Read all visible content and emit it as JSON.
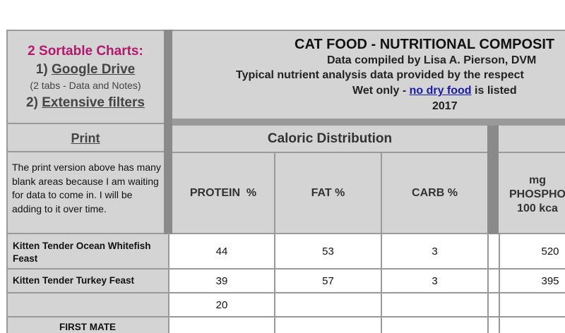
{
  "left_panel": {
    "charts_title": "2 Sortable Charts:",
    "item1_num": "1)",
    "item1_label": "Google Drive",
    "item1_note": "(2 tabs - Data and Notes)",
    "item2_num": "2)",
    "item2_label": "Extensive filters",
    "print_label": "Print",
    "print_note": "The print version above has many blank areas because I am waiting for data to come in.  I will be adding to it over time."
  },
  "header": {
    "title": "CAT FOOD - NUTRITIONAL COMPOSIT",
    "line2": "Data compiled by Lisa A. Pierson, DVM",
    "line3": "Typical nutrient analysis data provided by the respect",
    "line4_pre": "Wet only - ",
    "line4_link": "no dry food",
    "line4_post": " is listed",
    "year": "2017"
  },
  "table": {
    "group_header": "Caloric Distribution",
    "columns": {
      "protein": "PROTEIN  %",
      "fat": "FAT %",
      "carb": "CARB %",
      "phos_line1": "mg",
      "phos_line2": "PHOSPHO",
      "phos_line3": "100 kca"
    },
    "rows": [
      {
        "name": "Kitten Tender Ocean Whitefish Feast",
        "protein": "44",
        "fat": "53",
        "carb": "3",
        "phos": "520"
      },
      {
        "name": "Kitten Tender Turkey Feast",
        "protein": "39",
        "fat": "57",
        "carb": "3",
        "phos": "395"
      },
      {
        "name": "",
        "protein": "20",
        "fat": "",
        "carb": "",
        "phos": ""
      },
      {
        "name": "FIRST MATE",
        "protein": "",
        "fat": "",
        "carb": "",
        "phos": ""
      }
    ]
  },
  "colors": {
    "accent_magenta": "#b3186d",
    "link_blue": "#1a1aa6",
    "header_gray": "#d4d4d4"
  }
}
